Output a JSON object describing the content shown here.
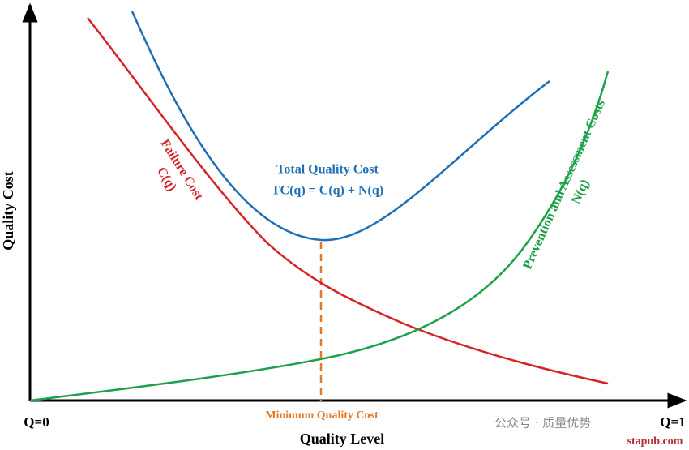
{
  "axes": {
    "y_label": "Quality Cost",
    "x_label": "Quality Level",
    "origin_label": "Q=0",
    "end_label": "Q=1"
  },
  "curves": {
    "total": {
      "label": [
        "Total Quality Cost",
        "TC(q) = C(q) + N(q)"
      ]
    },
    "failure": {
      "label": [
        "Failure Cost",
        "C(q)"
      ]
    },
    "prevention": {
      "label": [
        "Prevention and Assessment Costs",
        "N(q)"
      ]
    }
  },
  "minimum": {
    "label": "Minimum Quality Cost"
  },
  "watermark": {
    "account": "公众号 · 质量优势",
    "site": "stapub.com"
  }
}
